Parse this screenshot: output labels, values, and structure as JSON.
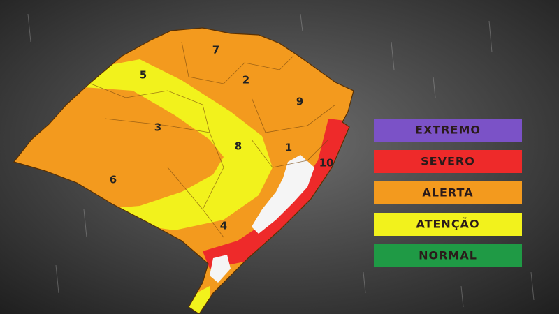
{
  "map": {
    "regions": [
      {
        "label": "1"
      },
      {
        "label": "2"
      },
      {
        "label": "3"
      },
      {
        "label": "4"
      },
      {
        "label": "5"
      },
      {
        "label": "6"
      },
      {
        "label": "7"
      },
      {
        "label": "8"
      },
      {
        "label": "9"
      },
      {
        "label": "10"
      }
    ]
  },
  "legend": [
    {
      "label": "EXTREMO",
      "color": "#7b52c7"
    },
    {
      "label": "SEVERO",
      "color": "#ee2a2a"
    },
    {
      "label": "ALERTA",
      "color": "#f39a1e"
    },
    {
      "label": "ATENÇÃO",
      "color": "#f2f21c"
    },
    {
      "label": "NORMAL",
      "color": "#1f9a45"
    }
  ]
}
